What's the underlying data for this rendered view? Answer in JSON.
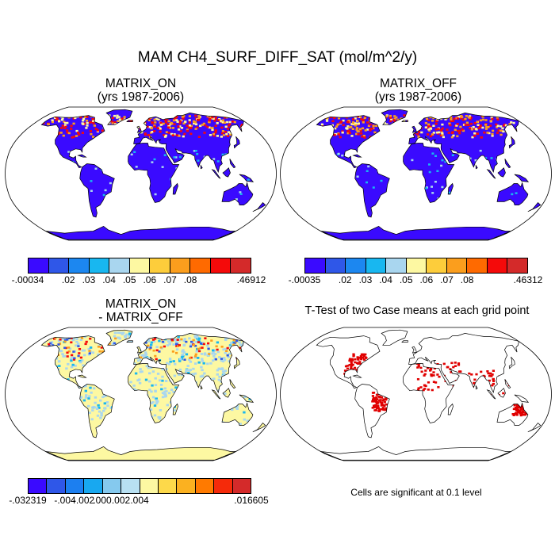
{
  "figure_title": "MAM CH4_SURF_DIFF_SAT (mol/m^2/y)",
  "panels": {
    "on": {
      "line1": "MATRIX_ON",
      "line2": "(yrs 1987-2006)"
    },
    "off": {
      "line1": "MATRIX_OFF",
      "line2": "(yrs 1987-2006)"
    },
    "diff": {
      "line1": "MATRIX_ON",
      "line2": "- MATRIX_OFF"
    },
    "ttest": {
      "title": "T-Test of two Case means at each grid point",
      "note": "Cells are significant at 0.1 level"
    }
  },
  "colorbars": {
    "on": {
      "labels": [
        "-.00034",
        ".02",
        ".03",
        ".04",
        ".05",
        ".06",
        ".07",
        ".08",
        ".46912"
      ],
      "colors": [
        "#3a0aff",
        "#2f57e8",
        "#1c87f0",
        "#18b7f0",
        "#a9d6ef",
        "#fdf8a2",
        "#fdcd3b",
        "#fb9e1d",
        "#ff6a00",
        "#f50a0a",
        "#d42a2a"
      ]
    },
    "off": {
      "labels": [
        "-.00035",
        ".02",
        ".03",
        ".04",
        ".05",
        ".06",
        ".07",
        ".08",
        ".46312"
      ],
      "colors": [
        "#3a0aff",
        "#2f57e8",
        "#1c87f0",
        "#18b7f0",
        "#a9d6ef",
        "#fdf8a2",
        "#fdcd3b",
        "#fb9e1d",
        "#ff6a00",
        "#f50a0a",
        "#d42a2a"
      ]
    },
    "diff": {
      "labels": [
        "-.032319",
        "-.004",
        "-.002",
        ".000",
        ".002",
        ".004",
        ".016605"
      ],
      "colors": [
        "#3a0aff",
        "#2f57e8",
        "#1c7ff0",
        "#18a8f0",
        "#85c9ee",
        "#b8e0f2",
        "#fdf8a2",
        "#fdd94a",
        "#fbb120",
        "#ff7a00",
        "#f52a0a",
        "#d42a2a"
      ]
    }
  },
  "map_colors": {
    "ocean": "#ffffff",
    "land_on": "#3a0aff",
    "land_diff": "#fdf8a2",
    "diff_blue": "#a9d6ef",
    "hot": "#f50a0a",
    "warm": "#fb9e1d",
    "signif": "#e00000"
  }
}
